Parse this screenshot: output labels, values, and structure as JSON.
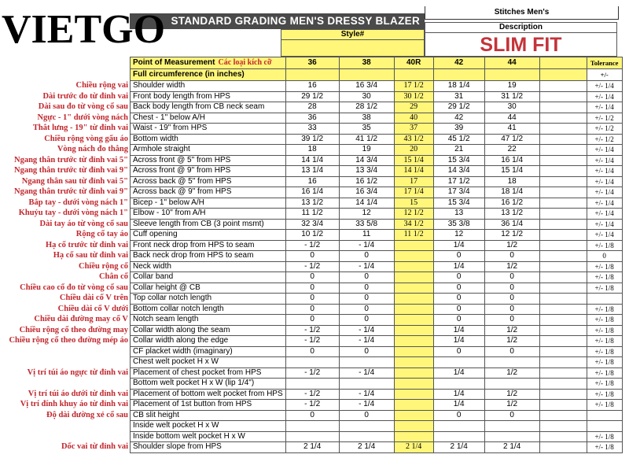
{
  "logo": "VIETGO",
  "header": {
    "title": "STANDARD GRADING MEN'S DRESSY BLAZER",
    "brand": "Stitches Men's",
    "style_label": "Style#",
    "description_label": "Description",
    "description": "SLIM FIT"
  },
  "columns": {
    "pom": "Point of Measurement",
    "pom_vn": "Các loại kích cỡ",
    "sizes": [
      "36",
      "38",
      "40R",
      "42",
      "44",
      ""
    ],
    "tolerance": "Tolerance",
    "tolerance_sub": "+/-",
    "section": "Full circumference (in inches)"
  },
  "colors": {
    "highlight": "#fff67a",
    "title_bar": "#4a4a4a",
    "slim_fit": "#c4333a",
    "vn_label": "#c0272d"
  },
  "rows": [
    {
      "vn": "Chiều rộng vai",
      "name": "Shoulder width",
      "values": [
        "16",
        "16 3/4",
        "17 1/2",
        "18 1/4",
        "19",
        ""
      ],
      "tol": "+/- 1/4"
    },
    {
      "vn": "Dài trước đo từ đỉnh vai",
      "name": "Front body length from HPS",
      "values": [
        "29 1/2",
        "30",
        "30 1/2",
        "31",
        "31 1/2",
        ""
      ],
      "tol": "+/- 1/4"
    },
    {
      "vn": "Dài sau đo từ vòng cổ sau",
      "name": "Back body length from CB neck seam",
      "values": [
        "28",
        "28 1/2",
        "29",
        "29 1/2",
        "30",
        ""
      ],
      "tol": "+/- 1/4"
    },
    {
      "vn": "Ngực - 1\" dưới vòng nách",
      "name": "Chest - 1\" below A/H",
      "values": [
        "36",
        "38",
        "40",
        "42",
        "44",
        ""
      ],
      "tol": "+/- 1/2"
    },
    {
      "vn": "Thắt lưng - 19\" từ đỉnh vai",
      "name": "Waist - 19\" from HPS",
      "values": [
        "33",
        "35",
        "37",
        "39",
        "41",
        ""
      ],
      "tol": "+/- 1/2"
    },
    {
      "vn": "Chiều rộng vòng gấu áo",
      "name": "Bottom width",
      "values": [
        "39 1/2",
        "41 1/2",
        "43 1/2",
        "45 1/2",
        "47 1/2",
        ""
      ],
      "tol": "+/- 1/2"
    },
    {
      "vn": "Vòng nách đo thẳng",
      "name": "Armhole straight",
      "values": [
        "18",
        "19",
        "20",
        "21",
        "22",
        ""
      ],
      "tol": "+/- 1/4"
    },
    {
      "vn": "Ngang thân trước từ đỉnh vai 5\"",
      "name": "Across front @ 5\" from HPS",
      "values": [
        "14 1/4",
        "14 3/4",
        "15 1/4",
        "15 3/4",
        "16 1/4",
        ""
      ],
      "tol": "+/- 1/4"
    },
    {
      "vn": "Ngang thân trước từ đỉnh vai 9\"",
      "name": "Across front @ 9\" from HPS",
      "values": [
        "13 1/4",
        "13 3/4",
        "14 1/4",
        "14 3/4",
        "15 1/4",
        ""
      ],
      "tol": "+/- 1/4"
    },
    {
      "vn": "Ngang thân sau từ đỉnh vai 5\"",
      "name": "Across back @ 5\" from HPS",
      "values": [
        "16",
        "16 1/2",
        "17",
        "17 1/2",
        "18",
        ""
      ],
      "tol": "+/- 1/4"
    },
    {
      "vn": "Ngang thân trước từ đỉnh vai 9\"",
      "name": "Across back @ 9\" from HPS",
      "values": [
        "16 1/4",
        "16 3/4",
        "17 1/4",
        "17 3/4",
        "18 1/4",
        ""
      ],
      "tol": "+/- 1/4"
    },
    {
      "vn": "Bắp tay - dưới vòng nách 1\"",
      "name": "Bicep - 1\" below A/H",
      "values": [
        "13 1/2",
        "14 1/4",
        "15",
        "15 3/4",
        "16 1/2",
        ""
      ],
      "tol": "+/- 1/4"
    },
    {
      "vn": "Khuỷu tay - dưới vòng nách 1\"",
      "name": "Elbow - 10\" from A/H",
      "values": [
        "11 1/2",
        "12",
        "12 1/2",
        "13",
        "13 1/2",
        ""
      ],
      "tol": "+/- 1/4"
    },
    {
      "vn": "Dài tay áo từ vòng cổ sau",
      "name": "Sleeve length from CB (3 point msmt)",
      "values": [
        "32 3/4",
        "33 5/8",
        "34 1/2",
        "35 3/8",
        "36 1/4",
        ""
      ],
      "tol": "+/- 1/4"
    },
    {
      "vn": "Rộng cổ tay áo",
      "name": "Cuff opening",
      "values": [
        "10 1/2",
        "11",
        "11 1/2",
        "12",
        "12 1/2",
        ""
      ],
      "tol": "+/- 1/4"
    },
    {
      "vn": "Hạ cổ trước từ đỉnh vai",
      "name": "Front neck drop from HPS to seam",
      "values": [
        "- 1/2",
        "- 1/4",
        "",
        "1/4",
        "1/2",
        ""
      ],
      "tol": "+/- 1/8"
    },
    {
      "vn": "Hạ cổ sau từ đỉnh vai",
      "name": "Back neck drop from HPS to seam",
      "values": [
        "0",
        "0",
        "",
        "0",
        "0",
        ""
      ],
      "tol": "0"
    },
    {
      "vn": "Chiều rộng cổ",
      "name": "Neck width",
      "values": [
        "- 1/2",
        "- 1/4",
        "",
        "1/4",
        "1/2",
        ""
      ],
      "tol": "+/- 1/8"
    },
    {
      "vn": "Chân cổ",
      "name": "Collar band",
      "values": [
        "0",
        "0",
        "",
        "0",
        "0",
        ""
      ],
      "tol": "+/- 1/8"
    },
    {
      "vn": "Chiều cao cổ đo từ vòng cổ sau",
      "name": "Collar height @ CB",
      "values": [
        "0",
        "0",
        "",
        "0",
        "0",
        ""
      ],
      "tol": "+/- 1/8"
    },
    {
      "vn": "Chiều dài cổ V trên",
      "name": "Top collar notch length",
      "values": [
        "0",
        "0",
        "",
        "0",
        "0",
        ""
      ],
      "tol": ""
    },
    {
      "vn": "Chiều dài cổ V dưới",
      "name": "Bottom collar notch length",
      "values": [
        "0",
        "0",
        "",
        "0",
        "0",
        ""
      ],
      "tol": "+/- 1/8"
    },
    {
      "vn": "Chiều dài đường may cổ V",
      "name": "Notch seam length",
      "values": [
        "0",
        "0",
        "",
        "0",
        "0",
        ""
      ],
      "tol": "+/- 1/8"
    },
    {
      "vn": "Chiều rộng cổ theo đường may",
      "name": "Collar width along the seam",
      "values": [
        "- 1/2",
        "- 1/4",
        "",
        "1/4",
        "1/2",
        ""
      ],
      "tol": "+/- 1/8"
    },
    {
      "vn": "Chiều rộng cổ theo đường mép áo",
      "name": "Collar width along the edge",
      "values": [
        "- 1/2",
        "- 1/4",
        "",
        "1/4",
        "1/2",
        ""
      ],
      "tol": "+/- 1/8"
    },
    {
      "vn": "",
      "name": "CF placket width (imaginary)",
      "values": [
        "0",
        "0",
        "",
        "0",
        "0",
        ""
      ],
      "tol": "+/- 1/8"
    },
    {
      "vn": "",
      "name": "Chest welt pocket H x W",
      "values": [
        "",
        "",
        "",
        "",
        "",
        ""
      ],
      "tol": "+/- 1/8"
    },
    {
      "vn": "Vị trí túi áo ngực từ đỉnh vai",
      "name": "Placement of chest pocket from HPS",
      "values": [
        "- 1/2",
        "- 1/4",
        "",
        "1/4",
        "1/2",
        ""
      ],
      "tol": "+/- 1/8"
    },
    {
      "vn": "",
      "name": "Bottom welt pocket H x W (lip 1/4\")",
      "values": [
        "",
        "",
        "",
        "",
        "",
        ""
      ],
      "tol": "+/- 1/8"
    },
    {
      "vn": "Vị trí túi áo dưới từ đỉnh vai",
      "name": "Placement of bottom welt pocket from HPS",
      "values": [
        "- 1/2",
        "- 1/4",
        "",
        "1/4",
        "1/2",
        ""
      ],
      "tol": "+/- 1/8"
    },
    {
      "vn": "Vị trí đính khuy áo từ đỉnh vai",
      "name": "Placement of 1st button from HPS",
      "values": [
        "- 1/2",
        "- 1/4",
        "",
        "1/4",
        "1/2",
        ""
      ],
      "tol": "+/- 1/8"
    },
    {
      "vn": "Độ dài đường xẻ cổ sau",
      "name": "CB slit height",
      "values": [
        "0",
        "0",
        "",
        "0",
        "0",
        ""
      ],
      "tol": ""
    },
    {
      "vn": "",
      "name": "Inside  welt pocket H x W",
      "values": [
        "",
        "",
        "",
        "",
        "",
        ""
      ],
      "tol": ""
    },
    {
      "vn": "",
      "name": "Inside bottom welt pocket H x W",
      "values": [
        "",
        "",
        "",
        "",
        "",
        ""
      ],
      "tol": "+/- 1/8"
    },
    {
      "vn": "Dốc vai từ đỉnh vai",
      "name": "Shoulder slope from HPS",
      "values": [
        "2 1/4",
        "2 1/4",
        "2 1/4",
        "2 1/4",
        "2 1/4",
        ""
      ],
      "tol": "+/- 1/8"
    }
  ]
}
